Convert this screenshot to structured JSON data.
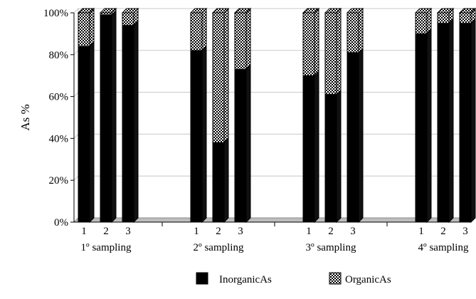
{
  "chart_data": {
    "type": "bar",
    "stacked": true,
    "percent": true,
    "categories": [
      "1",
      "2",
      "3",
      "1",
      "2",
      "3",
      "1",
      "2",
      "3",
      "1",
      "2",
      "3"
    ],
    "groups": [
      {
        "label": "1º sampling",
        "categories": [
          "1",
          "2",
          "3"
        ]
      },
      {
        "label": "2º sampling",
        "categories": [
          "1",
          "2",
          "3"
        ]
      },
      {
        "label": "3º sampling",
        "categories": [
          "1",
          "2",
          "3"
        ]
      },
      {
        "label": "4º sampling",
        "categories": [
          "1",
          "2",
          "3"
        ]
      }
    ],
    "series": [
      {
        "name": "InorganicAs",
        "fill": "solid",
        "color": "#000000",
        "values": [
          84,
          99,
          94,
          82,
          38,
          73,
          70,
          61,
          81,
          90,
          95,
          95
        ]
      },
      {
        "name": "OrganicAs",
        "fill": "checker",
        "color": "#000000",
        "values": [
          16,
          1,
          6,
          18,
          62,
          27,
          30,
          39,
          19,
          10,
          5,
          5
        ]
      }
    ],
    "ylabel": "As %",
    "xlabel": "",
    "title": "",
    "ylim": [
      0,
      100
    ],
    "yticks": [
      "0%",
      "20%",
      "40%",
      "60%",
      "80%",
      "100%"
    ],
    "grid": true,
    "legend_position": "bottom",
    "three_d": true
  }
}
